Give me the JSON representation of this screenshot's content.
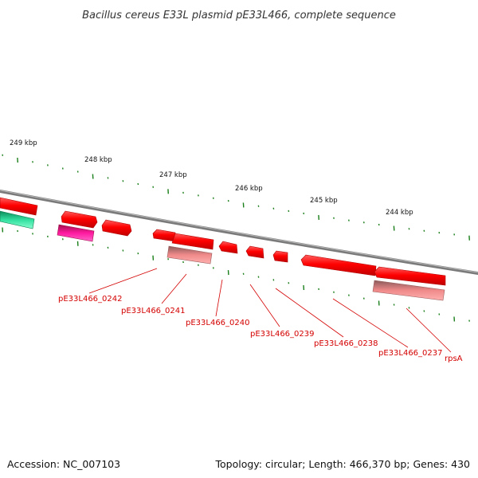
{
  "title": "Bacillus cereus E33L plasmid pE33L466, complete sequence",
  "footer": {
    "accession": "Accession: NC_007103",
    "summary": "Topology: circular; Length: 466,370 bp; Genes: 430"
  },
  "scale_labels": [
    "249 kbp",
    "248 kbp",
    "247 kbp",
    "246 kbp",
    "245 kbp",
    "244 kbp"
  ],
  "gene_labels": [
    "pE33L466_0242",
    "pE33L466_0241",
    "pE33L466_0240",
    "pE33L466_0239",
    "pE33L466_0238",
    "pE33L466_0237",
    "rpsA"
  ],
  "colors": {
    "backbone": "#7a7a7a",
    "gene": "#ff0000",
    "gene_dark": "#c80000",
    "rna": "#ff1aa0",
    "pseudo": "#f08a8a",
    "other": "#33e0a0",
    "ticks": "#1a7f1a",
    "label": "#d40000"
  }
}
